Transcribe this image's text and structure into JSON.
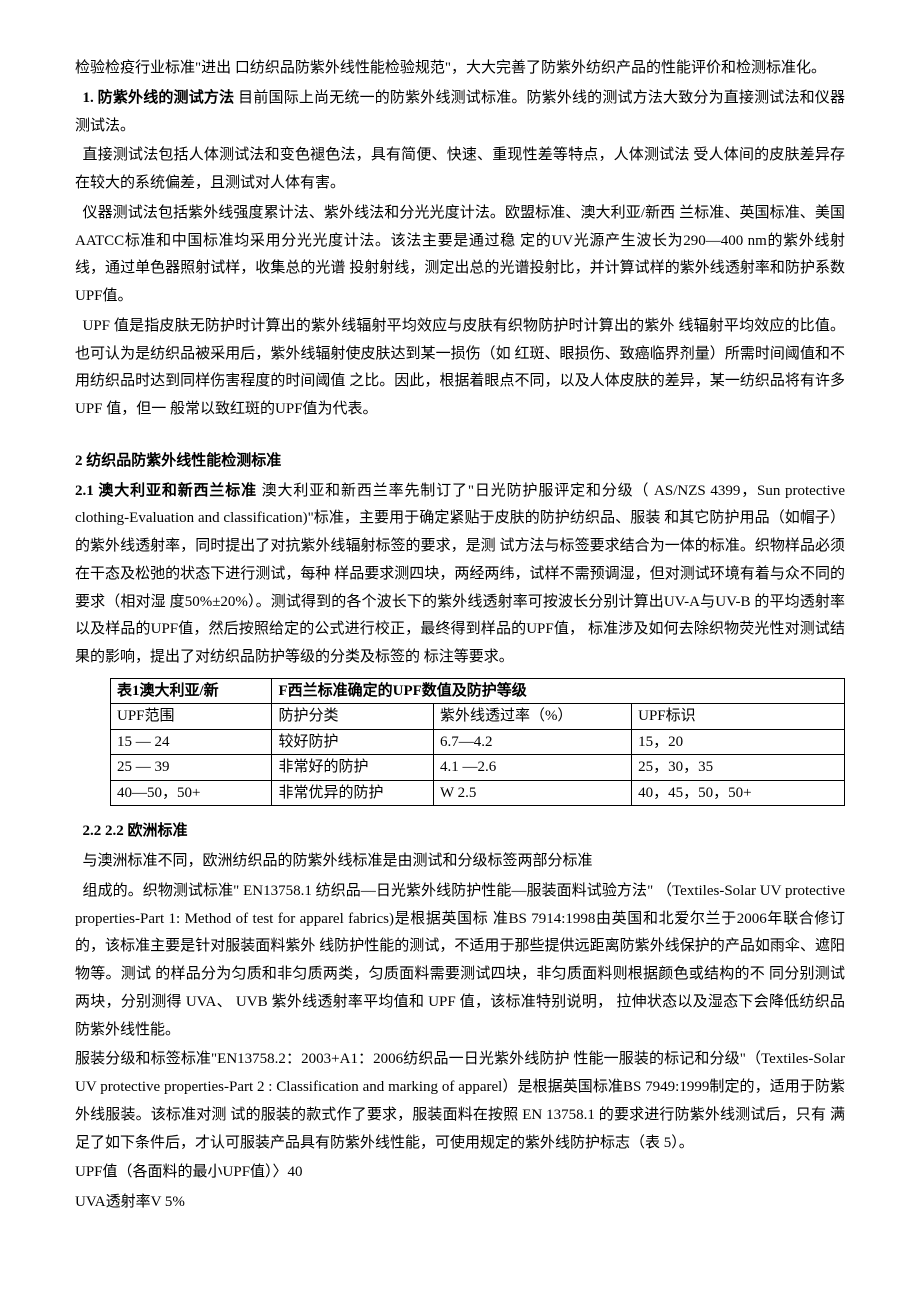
{
  "p1": "检验检疫行业标准\"进出 口纺织品防紫外线性能检验规范\"，大大完善了防紫外纺织产品的性能评价和检测标准化。",
  "p2_bold": "1. 防紫外线的测试方法",
  "p2_rest": " 目前国际上尚无统一的防紫外线测试标准。防紫外线的测试方法大致分为直接测试法和仪器 测试法。",
  "p3": "直接测试法包括人体测试法和变色褪色法，具有简便、快速、重现性差等特点，人体测试法 受人体间的皮肤差异存在较大的系统偏差，且测试对人体有害。",
  "p4": "仪器测试法包括紫外线强度累计法、紫外线法和分光光度计法。欧盟标准、澳大利亚/新西 兰标准、英国标准、美国AATCC标准和中国标准均采用分光光度计法。该法主要是通过稳 定的UV光源产生波长为290—400 nm的紫外线射线，通过单色器照射试样，收集总的光谱 投射射线，测定出总的光谱投射比，并计算试样的紫外线透射率和防护系数UPF值。",
  "p5": "UPF 值是指皮肤无防护时计算出的紫外线辐射平均效应与皮肤有织物防护时计算出的紫外 线辐射平均效应的比值。也可认为是纺织品被采用后，紫外线辐射使皮肤达到某一损伤（如 红斑、眼损伤、致癌临界剂量）所需时间阈值和不用纺织品时达到同样伤害程度的时间阈值 之比。因此，根据着眼点不同，以及人体皮肤的差异，某一纺织品将有许多 UPF 值，但一 般常以致红斑的UPF值为代表。",
  "h1": "2 纺织品防紫外线性能检测标准",
  "p6_bold": "2.1 澳大利亚和新西兰标准",
  "p6_rest": " 澳大利亚和新西兰率先制订了\"日光防护服评定和分级（ AS/NZS 4399，Sun protective clothing-Evaluation and classification)\"标准，主要用于确定紧贴于皮肤的防护纺织品、服装 和其它防护用品（如帽子）的紫外线透射率，同时提出了对抗紫外线辐射标签的要求，是测 试方法与标签要求结合为一体的标准。织物样品必须在干态及松弛的状态下进行测试，每种  样品要求测四块，两经两纬，试样不需预调湿，但对测试环境有着与众不同的要求（相对湿 度50%±20%）。测试得到的各个波长下的紫外线透射率可按波长分别计算出UV-A与UV-B 的平均透射率以及样品的UPF值，然后按照给定的公式进行校正，最终得到样品的UPF值， 标准涉及如何去除织物荧光性对测试结果的影响，提出了对纺织品防护等级的分类及标签的 标注等要求。",
  "table": {
    "title_left": "表1澳大利亚/新",
    "title_right": "F西兰标准确定的UPF数值及防护等级",
    "headers": [
      "UPF范围",
      "防护分类",
      "紫外线透过率（%）",
      "UPF标识"
    ],
    "rows": [
      [
        "15 — 24",
        "较好防护",
        "6.7—4.2",
        "15，20"
      ],
      [
        "25 — 39",
        "非常好的防护",
        "4.1 —2.6",
        "25，30，35"
      ],
      [
        "40—50，50+",
        "非常优异的防护",
        "W 2.5",
        "40，45，50，50+"
      ]
    ],
    "col_widths": [
      "22%",
      "22%",
      "27%",
      "29%"
    ]
  },
  "h2": "2.2 2.2 欧洲标准",
  "p7": "与澳洲标准不同，欧洲纺织品的防紫外线标准是由测试和分级标签两部分标准",
  "p8": "组成的。织物测试标准\" EN13758.1 纺织品—日光紫外线防护性能—服装面料试验方法\" （Textiles-Solar UV protective properties-Part 1: Method of test for apparel fabrics)是根据英国标 准BS 7914:1998由英国和北爱尔兰于2006年联合修订的，该标准主要是针对服装面料紫外 线防护性能的测试，不适用于那些提供远距离防紫外线保护的产品如雨伞、遮阳物等。测试 的样品分为匀质和非匀质两类，匀质面料需要测试四块，非匀质面料则根据颜色或结构的不 同分别测试两块，分别测得 UVA、 UVB 紫外线透射率平均值和 UPF 值，该标准特别说明， 拉伸状态以及湿态下会降低纺织品防紫外线性能。",
  "p9": "服装分级和标签标准\"EN13758.2：2003+A1：2006纺织品一日光紫外线防护 性能一服装的标记和分级\"（Textiles-Solar UV protective properties-Part 2 : Classification and marking of apparel）是根据英国标准BS 7949:1999制定的，适用于防紫外线服装。该标准对测 试的服装的款式作了要求，服装面料在按照 EN 13758.1 的要求进行防紫外线测试后，只有 满足了如下条件后，才认可服装产品具有防紫外线性能，可使用规定的紫外线防护标志（表 5）。",
  "p10": "UPF值（各面料的最小UPF值）〉40",
  "p11": "UVA透射率V 5%"
}
